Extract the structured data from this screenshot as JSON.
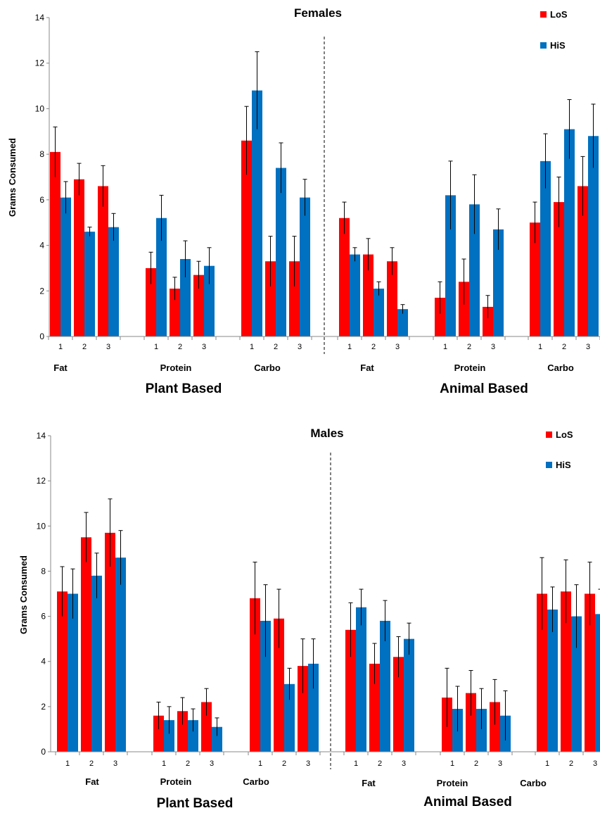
{
  "series_colors": {
    "LoS": "#ff0000",
    "HiS": "#0070c0"
  },
  "chart_data": [
    {
      "type": "bar",
      "title": "Females",
      "ylabel": "Grams Consumed",
      "ylim": [
        0,
        14
      ],
      "yticks": [
        0,
        2,
        4,
        6,
        8,
        10,
        12,
        14
      ],
      "legend_position": "top-right",
      "series_names": [
        "LoS",
        "HiS"
      ],
      "sections": [
        {
          "label": "Plant Based",
          "groups": [
            {
              "label": "Fat",
              "subs": [
                {
                  "label": "1",
                  "LoS": 8.1,
                  "HiS": 6.1,
                  "LoS_err": 1.1,
                  "HiS_err": 0.7
                },
                {
                  "label": "2",
                  "LoS": 6.9,
                  "HiS": 4.6,
                  "LoS_err": 0.7,
                  "HiS_err": 0.2
                },
                {
                  "label": "3",
                  "LoS": 6.6,
                  "HiS": 4.8,
                  "LoS_err": 0.9,
                  "HiS_err": 0.6
                }
              ]
            },
            {
              "label": "Protein",
              "subs": [
                {
                  "label": "1",
                  "LoS": 3.0,
                  "HiS": 5.2,
                  "LoS_err": 0.7,
                  "HiS_err": 1.0
                },
                {
                  "label": "2",
                  "LoS": 2.1,
                  "HiS": 3.4,
                  "LoS_err": 0.5,
                  "HiS_err": 0.8
                },
                {
                  "label": "3",
                  "LoS": 2.7,
                  "HiS": 3.1,
                  "LoS_err": 0.6,
                  "HiS_err": 0.8
                }
              ]
            },
            {
              "label": "Carbo",
              "subs": [
                {
                  "label": "1",
                  "LoS": 8.6,
                  "HiS": 10.8,
                  "LoS_err": 1.5,
                  "HiS_err": 1.7
                },
                {
                  "label": "2",
                  "LoS": 3.3,
                  "HiS": 7.4,
                  "LoS_err": 1.1,
                  "HiS_err": 1.1
                },
                {
                  "label": "3",
                  "LoS": 3.3,
                  "HiS": 6.1,
                  "LoS_err": 1.1,
                  "HiS_err": 0.8
                }
              ]
            }
          ]
        },
        {
          "label": "Animal Based",
          "groups": [
            {
              "label": "Fat",
              "subs": [
                {
                  "label": "1",
                  "LoS": 5.2,
                  "HiS": 3.6,
                  "LoS_err": 0.7,
                  "HiS_err": 0.3
                },
                {
                  "label": "2",
                  "LoS": 3.6,
                  "HiS": 2.1,
                  "LoS_err": 0.7,
                  "HiS_err": 0.3
                },
                {
                  "label": "3",
                  "LoS": 3.3,
                  "HiS": 1.2,
                  "LoS_err": 0.6,
                  "HiS_err": 0.2
                }
              ]
            },
            {
              "label": "Protein",
              "subs": [
                {
                  "label": "1",
                  "LoS": 1.7,
                  "HiS": 6.2,
                  "LoS_err": 0.7,
                  "HiS_err": 1.5
                },
                {
                  "label": "2",
                  "LoS": 2.4,
                  "HiS": 5.8,
                  "LoS_err": 1.0,
                  "HiS_err": 1.3
                },
                {
                  "label": "3",
                  "LoS": 1.3,
                  "HiS": 4.7,
                  "LoS_err": 0.5,
                  "HiS_err": 0.9
                }
              ]
            },
            {
              "label": "Carbo",
              "subs": [
                {
                  "label": "1",
                  "LoS": 5.0,
                  "HiS": 7.7,
                  "LoS_err": 0.9,
                  "HiS_err": 1.2
                },
                {
                  "label": "2",
                  "LoS": 5.9,
                  "HiS": 9.1,
                  "LoS_err": 1.1,
                  "HiS_err": 1.3
                },
                {
                  "label": "3",
                  "LoS": 6.6,
                  "HiS": 8.8,
                  "LoS_err": 1.3,
                  "HiS_err": 1.4
                }
              ]
            }
          ]
        }
      ]
    },
    {
      "type": "bar",
      "title": "Males",
      "ylabel": "Grams Consumed",
      "ylim": [
        0,
        14
      ],
      "yticks": [
        0,
        2,
        4,
        6,
        8,
        10,
        12,
        14
      ],
      "legend_position": "top-right",
      "series_names": [
        "LoS",
        "HiS"
      ],
      "sections": [
        {
          "label": "Plant Based",
          "groups": [
            {
              "label": "Fat",
              "subs": [
                {
                  "label": "1",
                  "LoS": 7.1,
                  "HiS": 7.0,
                  "LoS_err": 1.1,
                  "HiS_err": 1.1
                },
                {
                  "label": "2",
                  "LoS": 9.5,
                  "HiS": 7.8,
                  "LoS_err": 1.1,
                  "HiS_err": 1.0
                },
                {
                  "label": "3",
                  "LoS": 9.7,
                  "HiS": 8.6,
                  "LoS_err": 1.5,
                  "HiS_err": 1.2
                }
              ]
            },
            {
              "label": "Protein",
              "subs": [
                {
                  "label": "1",
                  "LoS": 1.6,
                  "HiS": 1.4,
                  "LoS_err": 0.6,
                  "HiS_err": 0.6
                },
                {
                  "label": "2",
                  "LoS": 1.8,
                  "HiS": 1.4,
                  "LoS_err": 0.6,
                  "HiS_err": 0.5
                },
                {
                  "label": "3",
                  "LoS": 2.2,
                  "HiS": 1.1,
                  "LoS_err": 0.6,
                  "HiS_err": 0.4
                }
              ]
            },
            {
              "label": "Carbo",
              "subs": [
                {
                  "label": "1",
                  "LoS": 6.8,
                  "HiS": 5.8,
                  "LoS_err": 1.6,
                  "HiS_err": 1.6
                },
                {
                  "label": "2",
                  "LoS": 5.9,
                  "HiS": 3.0,
                  "LoS_err": 1.3,
                  "HiS_err": 0.7
                },
                {
                  "label": "3",
                  "LoS": 3.8,
                  "HiS": 3.9,
                  "LoS_err": 1.2,
                  "HiS_err": 1.1
                }
              ]
            }
          ]
        },
        {
          "label": "Animal Based",
          "groups": [
            {
              "label": "Fat",
              "subs": [
                {
                  "label": "1",
                  "LoS": 5.4,
                  "HiS": 6.4,
                  "LoS_err": 1.2,
                  "HiS_err": 0.8
                },
                {
                  "label": "2",
                  "LoS": 3.9,
                  "HiS": 5.8,
                  "LoS_err": 0.9,
                  "HiS_err": 0.9
                },
                {
                  "label": "3",
                  "LoS": 4.2,
                  "HiS": 5.0,
                  "LoS_err": 0.9,
                  "HiS_err": 0.7
                }
              ]
            },
            {
              "label": "Protein",
              "subs": [
                {
                  "label": "1",
                  "LoS": 2.4,
                  "HiS": 1.9,
                  "LoS_err": 1.3,
                  "HiS_err": 1.0
                },
                {
                  "label": "2",
                  "LoS": 2.6,
                  "HiS": 1.9,
                  "LoS_err": 1.0,
                  "HiS_err": 0.9
                },
                {
                  "label": "3",
                  "LoS": 2.2,
                  "HiS": 1.6,
                  "LoS_err": 1.0,
                  "HiS_err": 1.1
                }
              ]
            },
            {
              "label": "Carbo",
              "subs": [
                {
                  "label": "1",
                  "LoS": 7.0,
                  "HiS": 6.3,
                  "LoS_err": 1.6,
                  "HiS_err": 1.0
                },
                {
                  "label": "2",
                  "LoS": 7.1,
                  "HiS": 6.0,
                  "LoS_err": 1.4,
                  "HiS_err": 1.4
                },
                {
                  "label": "3",
                  "LoS": 7.0,
                  "HiS": 6.1,
                  "LoS_err": 1.4,
                  "HiS_err": 1.1
                }
              ]
            }
          ]
        }
      ]
    }
  ]
}
